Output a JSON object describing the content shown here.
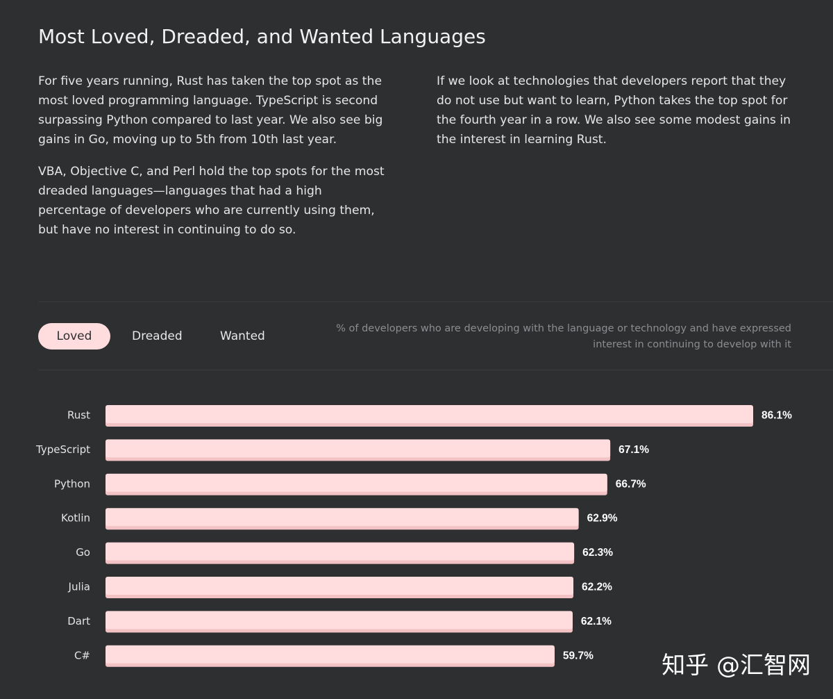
{
  "page": {
    "title": "Most Loved, Dreaded, and Wanted Languages",
    "intro_left": [
      "For five years running, Rust has taken the top spot as the most loved programming language. TypeScript is second surpassing Python compared to last year. We also see big gains in Go, moving up to 5th from 10th last year.",
      "VBA, Objective C, and Perl hold the top spots for the most dreaded languages—languages that had a high percentage of developers who are currently using them, but have no interest in continuing to do so."
    ],
    "intro_right": [
      "If we look at technologies that developers report that they do not use but want to learn, Python takes the top spot for the fourth year in a row. We also see some modest gains in the interest in learning Rust."
    ]
  },
  "tabs": [
    {
      "label": "Loved",
      "active": true
    },
    {
      "label": "Dreaded",
      "active": false
    },
    {
      "label": "Wanted",
      "active": false
    }
  ],
  "caption": "% of developers who are developing with the language or technology and have expressed interest in continuing to develop with it",
  "watermark": "知乎 @汇智网",
  "colors": {
    "background": "#2d2f31",
    "bar": "#ffdcdd",
    "bar_shadow": "#f2c2c4",
    "active_tab": "#ffdcdd"
  },
  "chart_data": {
    "type": "bar",
    "orientation": "horizontal",
    "categories": [
      "Rust",
      "TypeScript",
      "Python",
      "Kotlin",
      "Go",
      "Julia",
      "Dart",
      "C#"
    ],
    "values": [
      86.1,
      67.1,
      66.7,
      62.9,
      62.3,
      62.2,
      62.1,
      59.7
    ],
    "value_labels": [
      "86.1%",
      "67.1%",
      "66.7%",
      "62.9%",
      "62.3%",
      "62.2%",
      "62.1%",
      "59.7%"
    ],
    "unit": "%",
    "xlim": [
      0,
      86.1
    ],
    "grid": false,
    "legend": "none"
  }
}
